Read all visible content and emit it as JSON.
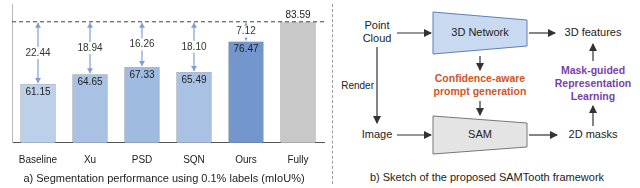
{
  "chart_data": {
    "type": "bar",
    "title": "a) Segmentation performance using 0.1% labels (mIoU%)",
    "categories": [
      "Baseline",
      "Xu",
      "PSD",
      "SQN",
      "Ours",
      "Fully"
    ],
    "values": [
      61.15,
      64.65,
      67.33,
      65.49,
      76.47,
      83.59
    ],
    "colors": [
      "#bcd0ea",
      "#a9c1e3",
      "#a0bbe0",
      "#a9c1e3",
      "#7396cc",
      "#c8c8c8"
    ],
    "ylim": [
      40,
      90
    ],
    "tick_labels": "x",
    "grid": false,
    "data_labels": true,
    "reference": 83.59,
    "gaps": [
      22.44,
      18.94,
      16.26,
      18.1,
      7.12,
      null
    ],
    "gap_labels": [
      "22.44",
      "18.94",
      "16.26",
      "18.10",
      "7.12",
      null
    ]
  },
  "diagram": {
    "title": "b) Sketch of the proposed SAMTooth framework",
    "nodes": [
      {
        "lines": [
          "Point",
          "Cloud"
        ]
      },
      {
        "lines": [
          "3D Network"
        ],
        "color": "#c9daf0"
      },
      {
        "lines": [
          "3D features"
        ]
      },
      {
        "lines": [
          "Render"
        ]
      },
      {
        "lines": [
          "Image"
        ]
      },
      {
        "lines": [
          "SAM"
        ],
        "color": "#e4e4e4"
      },
      {
        "lines": [
          "2D masks"
        ]
      },
      {
        "lines": [
          "Confidence-aware",
          "prompt generation"
        ],
        "color": "#d2561e"
      },
      {
        "lines": [
          "Mask-guided",
          "Representation",
          "Learning"
        ],
        "color": "#7a3fa8"
      }
    ]
  }
}
